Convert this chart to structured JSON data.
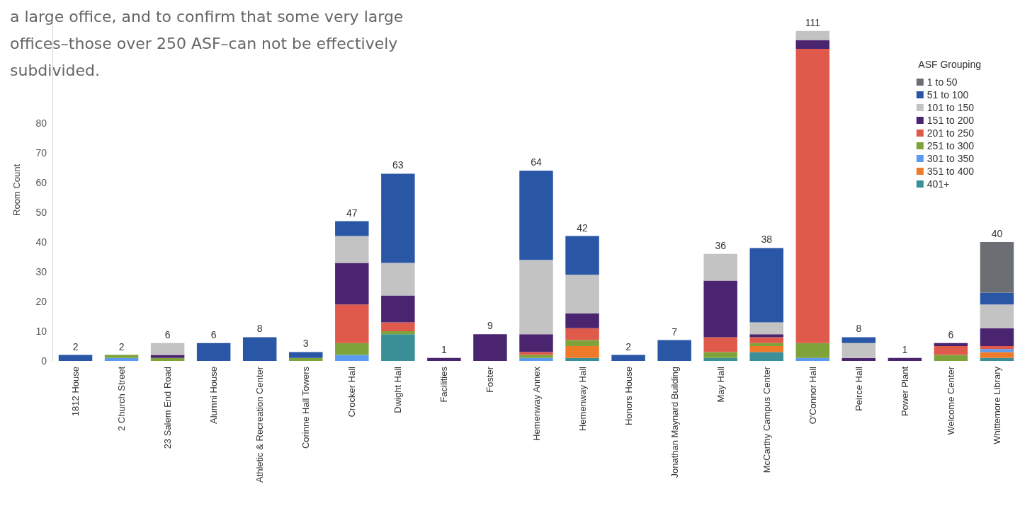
{
  "chart_data": {
    "type": "bar",
    "stacked": true,
    "ylabel": "Room Count",
    "legend_title": "ASF Grouping",
    "legend": "top right",
    "annotations": [
      "a large office, and to confirm that some very large offices–those over 250 ASF–can not be effectively subdivided."
    ],
    "categories": [
      "1812 House",
      "2 Church Street",
      "23 Salem End Road",
      "Alumni House",
      "Athletic & Recreation Center",
      "Corinne Hall Towers",
      "Crocker Hall",
      "Dwight Hall",
      "Facilities",
      "Foster",
      "Hemenway Annex",
      "Hemenway Hall",
      "Honors House",
      "Jonathan Maynard Building",
      "May Hall",
      "McCarthy Campus Center",
      "O'Connor Hall",
      "Peirce Hall",
      "Power Plant",
      "Welcome Center",
      "Whittemore Library"
    ],
    "ylim": [
      0,
      115
    ],
    "yticks": [
      0,
      10,
      20,
      30,
      40,
      50,
      60,
      70,
      80
    ],
    "grid": false,
    "totals": [
      "2",
      "2",
      "6",
      "6",
      "8",
      "3",
      "47",
      "63",
      "1",
      "9",
      "64",
      "42",
      "2",
      "7",
      "36",
      "38",
      "111",
      "8",
      "1",
      "6",
      "40"
    ],
    "series": [
      {
        "name": "401+",
        "color": "#3b8f96",
        "values": [
          null,
          null,
          null,
          null,
          null,
          null,
          null,
          9,
          null,
          null,
          null,
          1,
          null,
          null,
          1,
          3,
          null,
          null,
          null,
          null,
          1
        ]
      },
      {
        "name": "351 to 400",
        "color": "#ee7a2a",
        "values": [
          null,
          null,
          null,
          null,
          null,
          null,
          null,
          null,
          null,
          null,
          null,
          4,
          null,
          null,
          null,
          2,
          null,
          null,
          null,
          null,
          2
        ]
      },
      {
        "name": "301 to 350",
        "color": "#5b9cf0",
        "values": [
          null,
          1,
          null,
          null,
          null,
          null,
          2,
          null,
          null,
          null,
          1,
          null,
          null,
          null,
          null,
          null,
          1,
          null,
          null,
          null,
          1
        ]
      },
      {
        "name": "251 to 300",
        "color": "#7da33a",
        "values": [
          null,
          1,
          1,
          null,
          null,
          1,
          4,
          1,
          null,
          null,
          1,
          2,
          null,
          null,
          2,
          1,
          5,
          null,
          null,
          2,
          null
        ]
      },
      {
        "name": "201 to 250",
        "color": "#e05a4b",
        "values": [
          null,
          null,
          null,
          null,
          null,
          null,
          13,
          3,
          null,
          null,
          1,
          4,
          null,
          null,
          5,
          2,
          99,
          null,
          null,
          3,
          1
        ]
      },
      {
        "name": "151 to 200",
        "color": "#4b2470",
        "values": [
          null,
          null,
          1,
          null,
          null,
          null,
          14,
          9,
          1,
          9,
          6,
          5,
          null,
          null,
          19,
          1,
          3,
          1,
          1,
          1,
          6
        ]
      },
      {
        "name": "101 to 150",
        "color": "#c3c3c3",
        "values": [
          null,
          null,
          4,
          null,
          null,
          null,
          9,
          11,
          null,
          null,
          25,
          13,
          null,
          null,
          9,
          4,
          3,
          5,
          null,
          null,
          8
        ]
      },
      {
        "name": "51 to 100",
        "color": "#2a56a6",
        "values": [
          2,
          null,
          null,
          6,
          8,
          2,
          5,
          30,
          null,
          null,
          30,
          13,
          2,
          7,
          null,
          25,
          null,
          2,
          null,
          null,
          4
        ]
      },
      {
        "name": "1 to 50",
        "color": "#6b6e72",
        "values": [
          null,
          null,
          null,
          null,
          null,
          null,
          null,
          null,
          null,
          null,
          null,
          null,
          null,
          null,
          null,
          null,
          null,
          null,
          null,
          null,
          17
        ]
      }
    ]
  }
}
